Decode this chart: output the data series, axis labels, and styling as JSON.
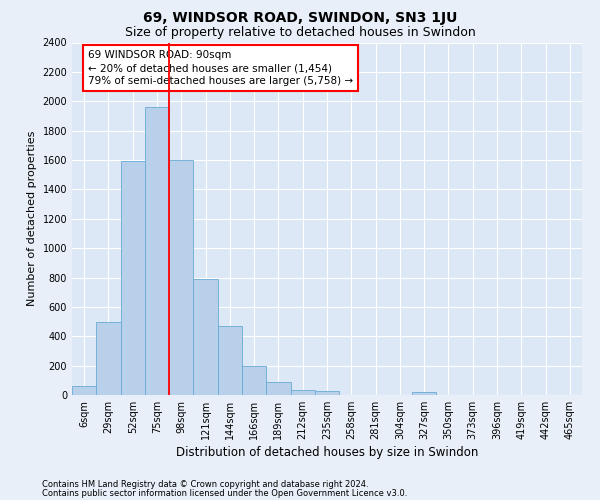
{
  "title": "69, WINDSOR ROAD, SWINDON, SN3 1JU",
  "subtitle": "Size of property relative to detached houses in Swindon",
  "xlabel": "Distribution of detached houses by size in Swindon",
  "ylabel": "Number of detached properties",
  "footer_line1": "Contains HM Land Registry data © Crown copyright and database right 2024.",
  "footer_line2": "Contains public sector information licensed under the Open Government Licence v3.0.",
  "bar_labels": [
    "6sqm",
    "29sqm",
    "52sqm",
    "75sqm",
    "98sqm",
    "121sqm",
    "144sqm",
    "166sqm",
    "189sqm",
    "212sqm",
    "235sqm",
    "258sqm",
    "281sqm",
    "304sqm",
    "327sqm",
    "350sqm",
    "373sqm",
    "396sqm",
    "419sqm",
    "442sqm",
    "465sqm"
  ],
  "bar_values": [
    60,
    500,
    1590,
    1960,
    1600,
    790,
    470,
    195,
    90,
    35,
    25,
    0,
    0,
    0,
    20,
    0,
    0,
    0,
    0,
    0,
    0
  ],
  "bar_color": "#b8d0ea",
  "bar_edge_color": "#6aaad4",
  "vline_index": 3.5,
  "vline_color": "red",
  "annotation_line1": "69 WINDSOR ROAD: 90sqm",
  "annotation_line2": "← 20% of detached houses are smaller (1,454)",
  "annotation_line3": "79% of semi-detached houses are larger (5,758) →",
  "ylim": [
    0,
    2400
  ],
  "yticks": [
    0,
    200,
    400,
    600,
    800,
    1000,
    1200,
    1400,
    1600,
    1800,
    2000,
    2200,
    2400
  ],
  "bg_color": "#e8eff8",
  "plot_bg_color": "#dce8f5",
  "title_fontsize": 10,
  "subtitle_fontsize": 9,
  "ylabel_fontsize": 8,
  "xlabel_fontsize": 8.5,
  "tick_fontsize": 7,
  "footer_fontsize": 6,
  "annot_fontsize": 7.5
}
